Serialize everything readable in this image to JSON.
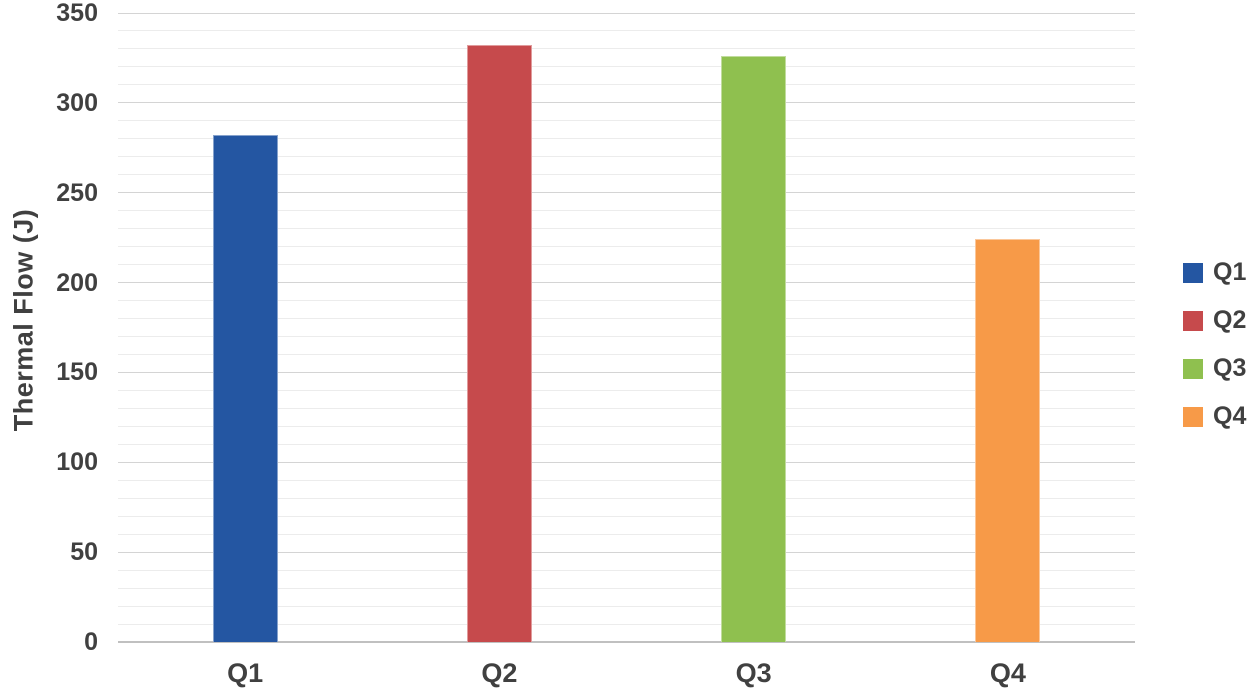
{
  "chart_data": {
    "type": "bar",
    "categories": [
      "Q1",
      "Q2",
      "Q3",
      "Q4"
    ],
    "values": [
      282,
      332,
      326,
      224
    ],
    "colors": [
      "#2456a2",
      "#c64a4c",
      "#8fc04f",
      "#f79a48"
    ],
    "title": "",
    "xlabel": "",
    "ylabel": "Thermal Flow (J)",
    "ylim": [
      0,
      350
    ],
    "ytick_step": 50,
    "minor_gridline_step": 10,
    "ytick_labels": [
      "0",
      "50",
      "100",
      "150",
      "200",
      "250",
      "300",
      "350"
    ],
    "grid": "horizontal, major and minor, on",
    "legend": {
      "position": "right",
      "entries": [
        {
          "label": "Q1",
          "color": "#2456a2"
        },
        {
          "label": "Q2",
          "color": "#c64a4c"
        },
        {
          "label": "Q3",
          "color": "#8fc04f"
        },
        {
          "label": "Q4",
          "color": "#f79a48"
        }
      ]
    },
    "styles": {
      "text_color": "#404040",
      "major_gridline_color": "#d4d4d4",
      "minor_gridline_color": "#ececec",
      "axis_line_color": "#c0c0c0",
      "background": "#ffffff"
    }
  }
}
